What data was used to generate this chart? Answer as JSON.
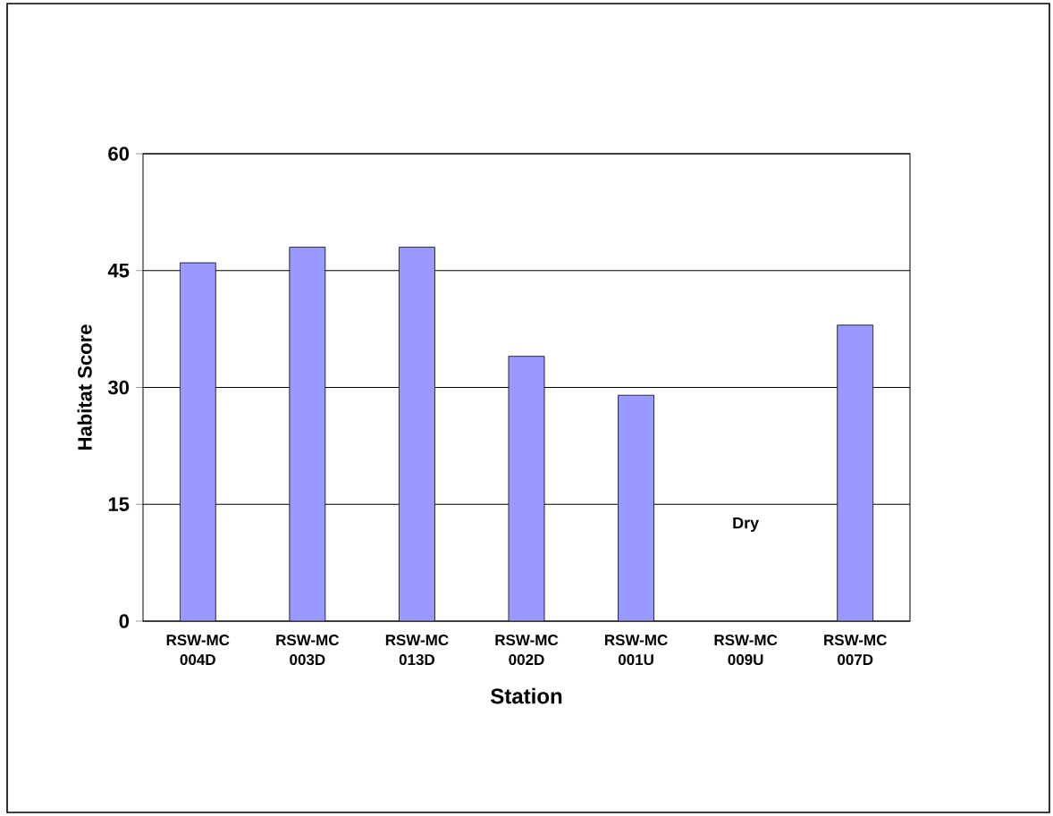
{
  "chart_data": {
    "type": "bar",
    "xlabel": "Station",
    "ylabel": "Habitat Score",
    "categories": [
      "RSW-MC 004D",
      "RSW-MC 003D",
      "RSW-MC 013D",
      "RSW-MC 002D",
      "RSW-MC 001U",
      "RSW-MC 009U",
      "RSW-MC 007D"
    ],
    "values": [
      46,
      48,
      48,
      34,
      29,
      null,
      38
    ],
    "color": "#9999ff",
    "ylim": [
      0,
      60
    ],
    "yticks": [
      0,
      15,
      30,
      45,
      60
    ],
    "grid": "y",
    "annotations": [
      "Dry"
    ]
  }
}
